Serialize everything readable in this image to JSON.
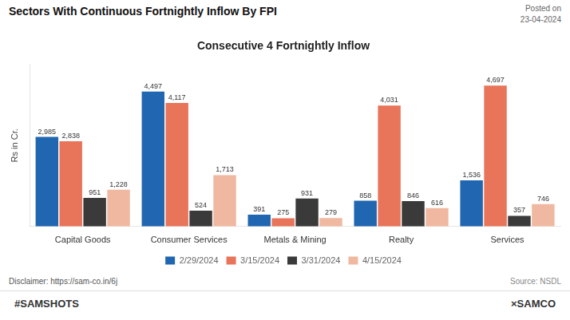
{
  "chart_data": {
    "type": "bar",
    "title": "Sectors With Continuous Fortnightly Inflow By FPI",
    "subtitle": "Consecutive 4 Fortnightly Inflow",
    "y_label": "Rs in Cr.",
    "annotations": [
      "Posted on\n23-04-2024",
      "Disclaimer: https://sam-co.in/6j",
      "Source: NSDL",
      "#SAMSHOTS",
      "×SAMCO"
    ],
    "categories": [
      "Capital Goods",
      "Consumer Services",
      "Metals & Mining",
      "Realty",
      "Services"
    ],
    "series": [
      {
        "name": "2/29/2024",
        "color": "#2166b0",
        "values": [
          2985,
          4497,
          391,
          858,
          1536
        ],
        "value_labels": [
          "2,985",
          "4,497",
          "391",
          "858",
          "1,536"
        ]
      },
      {
        "name": "3/15/2024",
        "color": "#e8745a",
        "values": [
          2838,
          4117,
          275,
          4031,
          4697
        ],
        "value_labels": [
          "2,838",
          "4,117",
          "275",
          "4,031",
          "4,697"
        ]
      },
      {
        "name": "3/31/2024",
        "color": "#3a3a3a",
        "values": [
          951,
          524,
          931,
          846,
          357
        ],
        "value_labels": [
          "951",
          "524",
          "931",
          "846",
          "357"
        ]
      },
      {
        "name": "4/15/2024",
        "color": "#f0b8a0",
        "values": [
          1228,
          1713,
          279,
          616,
          746
        ],
        "value_labels": [
          "1,228",
          "1,713",
          "279",
          "616",
          "746"
        ]
      }
    ],
    "ylim": [
      0,
      5400
    ],
    "grid": false,
    "legend": "bottom",
    "data_labels": true,
    "tick_labels": "x"
  }
}
